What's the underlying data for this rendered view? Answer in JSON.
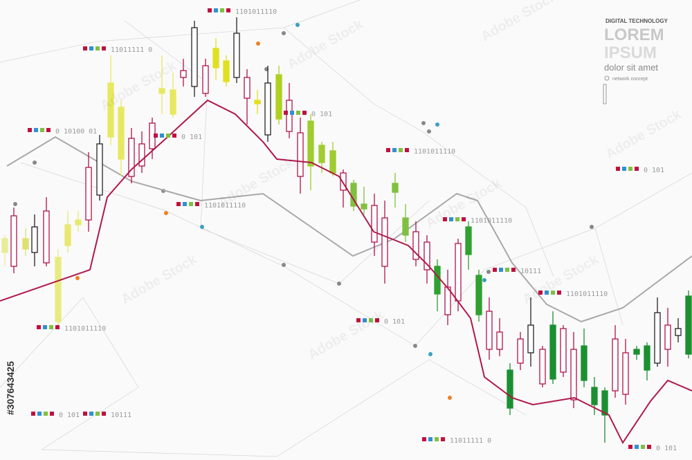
{
  "brand": {
    "kicker": "DIGITAL TECHNOLOGY",
    "title1": "LOREM",
    "title2": "IPSUM",
    "subtitle": "dolor sit amet",
    "caption": "network concept"
  },
  "labels": [
    "1101011110",
    "11011111 0",
    "0 10100 01",
    "0 101",
    "0 101",
    "1101011110",
    "1101011110",
    "1101011110",
    "10111",
    "1101011110",
    "1101011110",
    "0 101",
    "0 101",
    "0 101",
    "10111",
    "11011111 0",
    "0 101"
  ],
  "watermark": {
    "text": "Adobe Stock",
    "id": "#307643425"
  }
}
